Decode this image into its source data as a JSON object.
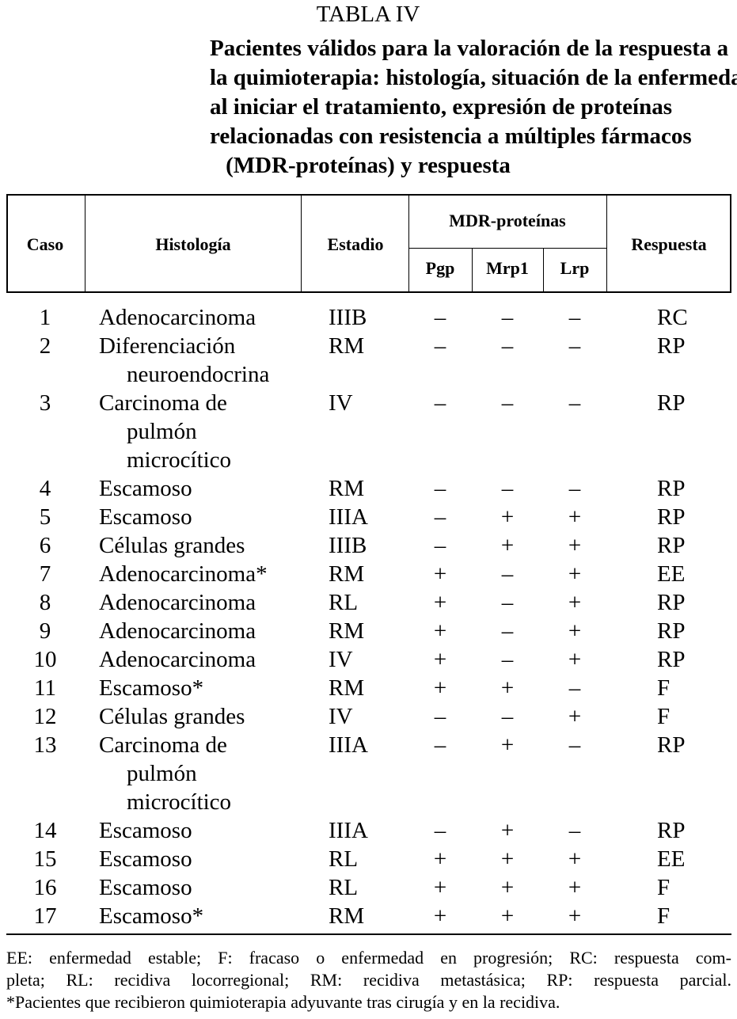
{
  "title": "TABLA IV",
  "subtitle": [
    "Pacientes válidos para la valoración de la respuesta a",
    "la quimioterapia: histología, situación de la enfermedad",
    "al iniciar el tratamiento, expresión de proteínas",
    "relacionadas con resistencia a múltiples fármacos",
    "(MDR-proteínas) y respuesta"
  ],
  "table": {
    "header": {
      "caso": "Caso",
      "histologia": "Histología",
      "estadio": "Estadio",
      "mdr": "MDR-proteínas",
      "pgp": "Pgp",
      "mrp1": "Mrp1",
      "lrp": "Lrp",
      "respuesta": "Respuesta"
    },
    "rows": [
      {
        "caso": "1",
        "histologia": [
          "Adenocarcinoma"
        ],
        "estadio": "IIIB",
        "pgp": "–",
        "mrp1": "–",
        "lrp": "–",
        "respuesta": "RC"
      },
      {
        "caso": "2",
        "histologia": [
          "Diferenciación",
          "neuroendocrina"
        ],
        "estadio": "RM",
        "pgp": "–",
        "mrp1": "–",
        "lrp": "–",
        "respuesta": "RP"
      },
      {
        "caso": "3",
        "histologia": [
          "Carcinoma de",
          "pulmón",
          "microcítico"
        ],
        "estadio": "IV",
        "pgp": "–",
        "mrp1": "–",
        "lrp": "–",
        "respuesta": "RP"
      },
      {
        "caso": "4",
        "histologia": [
          "Escamoso"
        ],
        "estadio": "RM",
        "pgp": "–",
        "mrp1": "–",
        "lrp": "–",
        "respuesta": "RP"
      },
      {
        "caso": "5",
        "histologia": [
          "Escamoso"
        ],
        "estadio": "IIIA",
        "pgp": "–",
        "mrp1": "+",
        "lrp": "+",
        "respuesta": "RP"
      },
      {
        "caso": "6",
        "histologia": [
          "Células grandes"
        ],
        "estadio": "IIIB",
        "pgp": "–",
        "mrp1": "+",
        "lrp": "+",
        "respuesta": "RP"
      },
      {
        "caso": "7",
        "histologia": [
          "Adenocarcinoma*"
        ],
        "estadio": "RM",
        "pgp": "+",
        "mrp1": "–",
        "lrp": "+",
        "respuesta": "EE"
      },
      {
        "caso": "8",
        "histologia": [
          "Adenocarcinoma"
        ],
        "estadio": "RL",
        "pgp": "+",
        "mrp1": "–",
        "lrp": "+",
        "respuesta": "RP"
      },
      {
        "caso": "9",
        "histologia": [
          "Adenocarcinoma"
        ],
        "estadio": "RM",
        "pgp": "+",
        "mrp1": "–",
        "lrp": "+",
        "respuesta": "RP"
      },
      {
        "caso": "10",
        "histologia": [
          "Adenocarcinoma"
        ],
        "estadio": "IV",
        "pgp": "+",
        "mrp1": "–",
        "lrp": "+",
        "respuesta": "RP"
      },
      {
        "caso": "11",
        "histologia": [
          "Escamoso*"
        ],
        "estadio": "RM",
        "pgp": "+",
        "mrp1": "+",
        "lrp": "–",
        "respuesta": "F"
      },
      {
        "caso": "12",
        "histologia": [
          "Células grandes"
        ],
        "estadio": "IV",
        "pgp": "–",
        "mrp1": "–",
        "lrp": "+",
        "respuesta": "F"
      },
      {
        "caso": "13",
        "histologia": [
          "Carcinoma de",
          "pulmón",
          "microcítico"
        ],
        "estadio": "IIIA",
        "pgp": "–",
        "mrp1": "+",
        "lrp": "–",
        "respuesta": "RP"
      },
      {
        "caso": "14",
        "histologia": [
          "Escamoso"
        ],
        "estadio": "IIIA",
        "pgp": "–",
        "mrp1": "+",
        "lrp": "–",
        "respuesta": "RP"
      },
      {
        "caso": "15",
        "histologia": [
          "Escamoso"
        ],
        "estadio": "RL",
        "pgp": "+",
        "mrp1": "+",
        "lrp": "+",
        "respuesta": "EE"
      },
      {
        "caso": "16",
        "histologia": [
          "Escamoso"
        ],
        "estadio": "RL",
        "pgp": "+",
        "mrp1": "+",
        "lrp": "+",
        "respuesta": "F"
      },
      {
        "caso": "17",
        "histologia": [
          "Escamoso*"
        ],
        "estadio": "RM",
        "pgp": "+",
        "mrp1": "+",
        "lrp": "+",
        "respuesta": "F"
      }
    ]
  },
  "footnotes": [
    "EE: enfermedad estable; F: fracaso o enfermedad en progresión; RC: respuesta com-",
    "pleta; RL: recidiva locorregional; RM: recidiva metastásica; RP: respuesta parcial.",
    "*Pacientes que recibieron quimioterapia adyuvante tras cirugía y en la recidiva."
  ]
}
